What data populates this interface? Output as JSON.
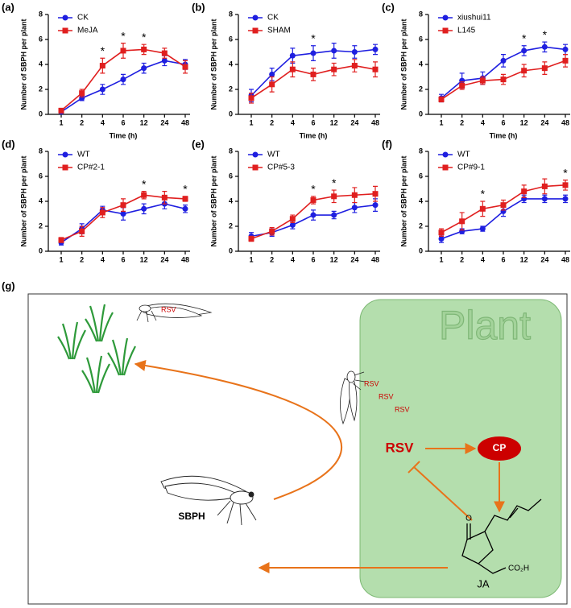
{
  "chart_data": [
    {
      "type": "line",
      "label": "(a)",
      "x_label": "Time (h)",
      "y_label": "Number of SBPH per plant",
      "categories": [
        "1",
        "2",
        "4",
        "6",
        "12",
        "24",
        "48"
      ],
      "ylim": [
        0,
        8
      ],
      "yticks": [
        0,
        2,
        4,
        6,
        8
      ],
      "legend": "upper left",
      "series": [
        {
          "name": "CK",
          "color": "#1f1fe0",
          "marker": "circle",
          "values": [
            0.2,
            1.3,
            2.0,
            2.8,
            3.7,
            4.3,
            4.0
          ],
          "errors": [
            0.1,
            0.2,
            0.4,
            0.4,
            0.4,
            0.4,
            0.4
          ]
        },
        {
          "name": "MeJA",
          "color": "#e01f1f",
          "marker": "square",
          "values": [
            0.3,
            1.7,
            3.9,
            5.1,
            5.2,
            4.9,
            3.8
          ],
          "errors": [
            0.1,
            0.3,
            0.6,
            0.6,
            0.4,
            0.4,
            0.5
          ]
        }
      ],
      "annotations": [
        {
          "category": "4",
          "text": "*"
        },
        {
          "category": "6",
          "text": "*"
        },
        {
          "category": "12",
          "text": "*"
        }
      ]
    },
    {
      "type": "line",
      "label": "(b)",
      "x_label": "Time (h)",
      "y_label": "Number of SBPH per plant",
      "categories": [
        "1",
        "2",
        "4",
        "6",
        "12",
        "24",
        "48"
      ],
      "ylim": [
        0,
        8
      ],
      "yticks": [
        0,
        2,
        4,
        6,
        8
      ],
      "legend": "upper left",
      "series": [
        {
          "name": "CK",
          "color": "#1f1fe0",
          "marker": "circle",
          "values": [
            1.5,
            3.2,
            4.7,
            4.9,
            5.1,
            5.0,
            5.2
          ],
          "errors": [
            0.5,
            0.5,
            0.6,
            0.6,
            0.6,
            0.5,
            0.4
          ]
        },
        {
          "name": "SHAM",
          "color": "#e01f1f",
          "marker": "square",
          "values": [
            1.3,
            2.4,
            3.6,
            3.2,
            3.6,
            3.9,
            3.6
          ],
          "errors": [
            0.4,
            0.6,
            0.6,
            0.5,
            0.5,
            0.5,
            0.6
          ]
        }
      ],
      "annotations": [
        {
          "category": "6",
          "text": "*"
        }
      ]
    },
    {
      "type": "line",
      "label": "(c)",
      "x_label": "Time (h)",
      "y_label": "Number of SBPH per plant",
      "categories": [
        "1",
        "2",
        "4",
        "6",
        "12",
        "24",
        "48"
      ],
      "ylim": [
        0,
        8
      ],
      "yticks": [
        0,
        2,
        4,
        6,
        8
      ],
      "legend": "upper left",
      "series": [
        {
          "name": "xiushui11",
          "color": "#1f1fe0",
          "marker": "circle",
          "values": [
            1.3,
            2.7,
            2.9,
            4.3,
            5.1,
            5.4,
            5.2
          ],
          "errors": [
            0.3,
            0.6,
            0.5,
            0.5,
            0.4,
            0.4,
            0.4
          ]
        },
        {
          "name": "L145",
          "color": "#e01f1f",
          "marker": "square",
          "values": [
            1.2,
            2.3,
            2.7,
            2.8,
            3.5,
            3.7,
            4.3
          ],
          "errors": [
            0.2,
            0.3,
            0.3,
            0.4,
            0.5,
            0.5,
            0.5
          ]
        }
      ],
      "annotations": [
        {
          "category": "12",
          "text": "*"
        },
        {
          "category": "24",
          "text": "*"
        }
      ]
    },
    {
      "type": "line",
      "label": "(d)",
      "y_label": "Number of SBPH per plant",
      "categories": [
        "1",
        "2",
        "4",
        "6",
        "12",
        "24",
        "48"
      ],
      "ylim": [
        0,
        8
      ],
      "yticks": [
        0,
        2,
        4,
        6,
        8
      ],
      "legend": "upper left",
      "series": [
        {
          "name": "WT",
          "color": "#1f1fe0",
          "marker": "circle",
          "values": [
            0.7,
            1.8,
            3.3,
            3.0,
            3.4,
            3.8,
            3.4
          ],
          "errors": [
            0.2,
            0.4,
            0.3,
            0.5,
            0.4,
            0.4,
            0.3
          ]
        },
        {
          "name": "CP#2-1",
          "color": "#e01f1f",
          "marker": "square",
          "values": [
            0.9,
            1.6,
            3.1,
            3.7,
            4.5,
            4.3,
            4.2
          ],
          "errors": [
            0.2,
            0.4,
            0.4,
            0.5,
            0.3,
            0.5,
            0.2
          ]
        }
      ],
      "annotations": [
        {
          "category": "12",
          "text": "*"
        },
        {
          "category": "48",
          "text": "*"
        }
      ]
    },
    {
      "type": "line",
      "label": "(e)",
      "y_label": "Number of SBPH per plant",
      "categories": [
        "1",
        "2",
        "4",
        "6",
        "12",
        "24",
        "48"
      ],
      "ylim": [
        0,
        8
      ],
      "yticks": [
        0,
        2,
        4,
        6,
        8
      ],
      "legend": "upper left",
      "series": [
        {
          "name": "WT",
          "color": "#1f1fe0",
          "marker": "circle",
          "values": [
            1.2,
            1.5,
            2.1,
            2.9,
            2.9,
            3.5,
            3.7
          ],
          "errors": [
            0.3,
            0.3,
            0.3,
            0.4,
            0.3,
            0.4,
            0.5
          ]
        },
        {
          "name": "CP#5-3",
          "color": "#e01f1f",
          "marker": "square",
          "values": [
            1.0,
            1.6,
            2.6,
            4.1,
            4.4,
            4.5,
            4.6
          ],
          "errors": [
            0.2,
            0.3,
            0.3,
            0.3,
            0.5,
            0.6,
            0.6
          ]
        }
      ],
      "annotations": [
        {
          "category": "6",
          "text": "*"
        },
        {
          "category": "12",
          "text": "*"
        }
      ]
    },
    {
      "type": "line",
      "label": "(f)",
      "y_label": "Number of SBPH per plant",
      "categories": [
        "1",
        "2",
        "4",
        "6",
        "12",
        "24",
        "48"
      ],
      "ylim": [
        0,
        8
      ],
      "yticks": [
        0,
        2,
        4,
        6,
        8
      ],
      "legend": "upper left",
      "series": [
        {
          "name": "WT",
          "color": "#1f1fe0",
          "marker": "circle",
          "values": [
            1.0,
            1.6,
            1.8,
            3.2,
            4.2,
            4.2,
            4.2
          ],
          "errors": [
            0.3,
            0.2,
            0.2,
            0.4,
            0.3,
            0.3,
            0.3
          ]
        },
        {
          "name": "CP#9-1",
          "color": "#e01f1f",
          "marker": "square",
          "values": [
            1.5,
            2.4,
            3.4,
            3.7,
            4.8,
            5.2,
            5.3
          ],
          "errors": [
            0.3,
            0.7,
            0.6,
            0.4,
            0.5,
            0.6,
            0.4
          ]
        }
      ],
      "annotations": [
        {
          "category": "4",
          "text": "*"
        },
        {
          "category": "48",
          "text": "*"
        }
      ]
    }
  ],
  "diagram": {
    "label": "(g)",
    "plant": "Plant",
    "insect_rsv": "RSV",
    "rsv_trail": [
      "RSV",
      "RSV",
      "RSV"
    ],
    "rsv": "RSV",
    "cp": "CP",
    "sbph": "SBPH",
    "ja": "JA",
    "ketone": "O",
    "acid": "CO₂H"
  }
}
